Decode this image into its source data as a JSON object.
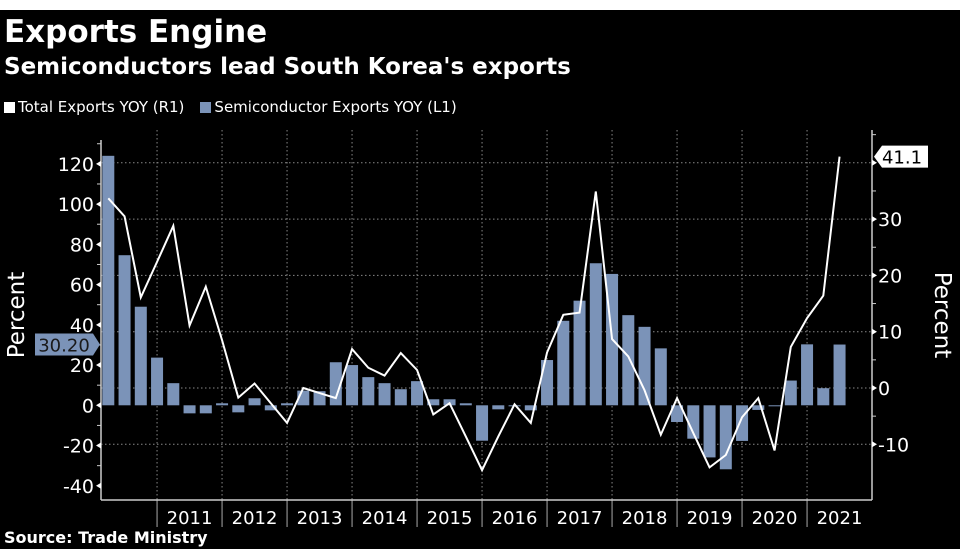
{
  "title": "Exports Engine",
  "subtitle": "Semiconductors lead South Korea's exports",
  "source": "Source: Trade Ministry",
  "colors": {
    "background": "#000000",
    "bars": "#7b93b8",
    "line": "#ffffff",
    "text": "#ffffff"
  },
  "chart_data": {
    "type": "bar+line",
    "x": [
      "2010-Q1",
      "2010-Q2",
      "2010-Q3",
      "2010-Q4",
      "2011-Q1",
      "2011-Q2",
      "2011-Q3",
      "2011-Q4",
      "2012-Q1",
      "2012-Q2",
      "2012-Q3",
      "2012-Q4",
      "2013-Q1",
      "2013-Q2",
      "2013-Q3",
      "2013-Q4",
      "2014-Q1",
      "2014-Q2",
      "2014-Q3",
      "2014-Q4",
      "2015-Q1",
      "2015-Q2",
      "2015-Q3",
      "2015-Q4",
      "2016-Q1",
      "2016-Q2",
      "2016-Q3",
      "2016-Q4",
      "2017-Q1",
      "2017-Q2",
      "2017-Q3",
      "2017-Q4",
      "2018-Q1",
      "2018-Q2",
      "2018-Q3",
      "2018-Q4",
      "2019-Q1",
      "2019-Q2",
      "2019-Q3",
      "2019-Q4",
      "2020-Q1",
      "2020-Q2",
      "2020-Q3",
      "2020-Q4",
      "2021-Q1",
      "2021-Q2"
    ],
    "x_tick_labels": [
      "2011",
      "2012",
      "2013",
      "2014",
      "2015",
      "2016",
      "2017",
      "2018",
      "2019",
      "2020",
      "2021"
    ],
    "series": [
      {
        "name": "Semiconductor Exports YOY (L1)",
        "type": "bar",
        "axis": "left",
        "values": [
          124,
          74.6,
          49,
          23.7,
          11,
          -4,
          -4,
          1,
          -3.5,
          3.5,
          -2.5,
          1,
          7.3,
          7,
          21.4,
          20,
          14,
          11,
          8,
          12,
          3,
          3,
          1,
          -17.6,
          -2,
          0,
          -2.5,
          22.5,
          42,
          52,
          70.6,
          65.3,
          44.8,
          39,
          28.3,
          -8.3,
          -16.6,
          -25.9,
          -31.8,
          -17.7,
          -2.3,
          0,
          12.3,
          30.3,
          8.5,
          30.2
        ]
      },
      {
        "name": "Total Exports YOY (R1)",
        "type": "line",
        "axis": "right",
        "values": [
          33.7,
          30.5,
          16.1,
          22.4,
          28.8,
          11.1,
          18,
          8.5,
          -1.7,
          0.8,
          -2.7,
          -6.2,
          0,
          -0.9,
          -1.8,
          6.9,
          3.6,
          2.2,
          6.2,
          3.2,
          -4.7,
          -2.7,
          -8.6,
          -14.6,
          -8.6,
          -2.9,
          -6.2,
          6.3,
          13,
          13.4,
          34.9,
          8.7,
          5.6,
          -0.4,
          -8.3,
          -1.8,
          -8,
          -14.1,
          -11.9,
          -5.2,
          -1.8,
          -11.1,
          7.3,
          12.4,
          16.4,
          41.1
        ]
      }
    ],
    "left_axis": {
      "label": "Percent",
      "ylim": [
        -45,
        125
      ],
      "ticks": [
        "120",
        "100",
        "80",
        "60",
        "40",
        "20",
        "0",
        "-20",
        "-40"
      ]
    },
    "right_axis": {
      "label": "Percent",
      "ylim": [
        -20,
        45
      ],
      "ticks": [
        "40",
        "30",
        "20",
        "10",
        "0",
        "-10"
      ]
    },
    "last_value_labels": {
      "left": "30.20",
      "right": "41.1"
    },
    "grid": true,
    "legend_placement": "top-left"
  }
}
